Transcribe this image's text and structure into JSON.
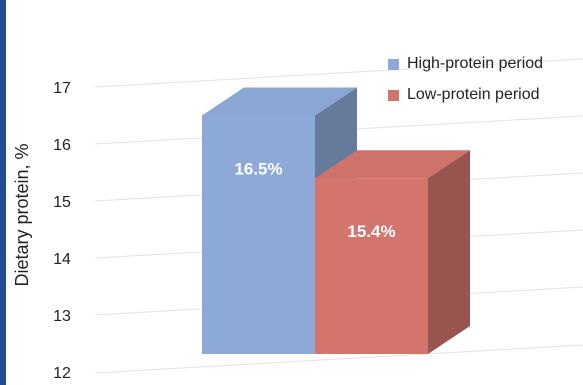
{
  "chart_data": {
    "type": "bar",
    "style": "3d",
    "title": "",
    "xlabel": "",
    "ylabel": "Dietary protein, %",
    "ylim": [
      12,
      17
    ],
    "yticks": [
      12,
      13,
      14,
      15,
      16,
      17
    ],
    "grid": true,
    "legend_position": "top-right",
    "series": [
      {
        "name": "High-protein period",
        "value": 16.5,
        "label": "16.5%",
        "color": "#8da9d7"
      },
      {
        "name": "Low-protein period",
        "value": 15.4,
        "label": "15.4%",
        "color": "#d3746d"
      }
    ]
  }
}
